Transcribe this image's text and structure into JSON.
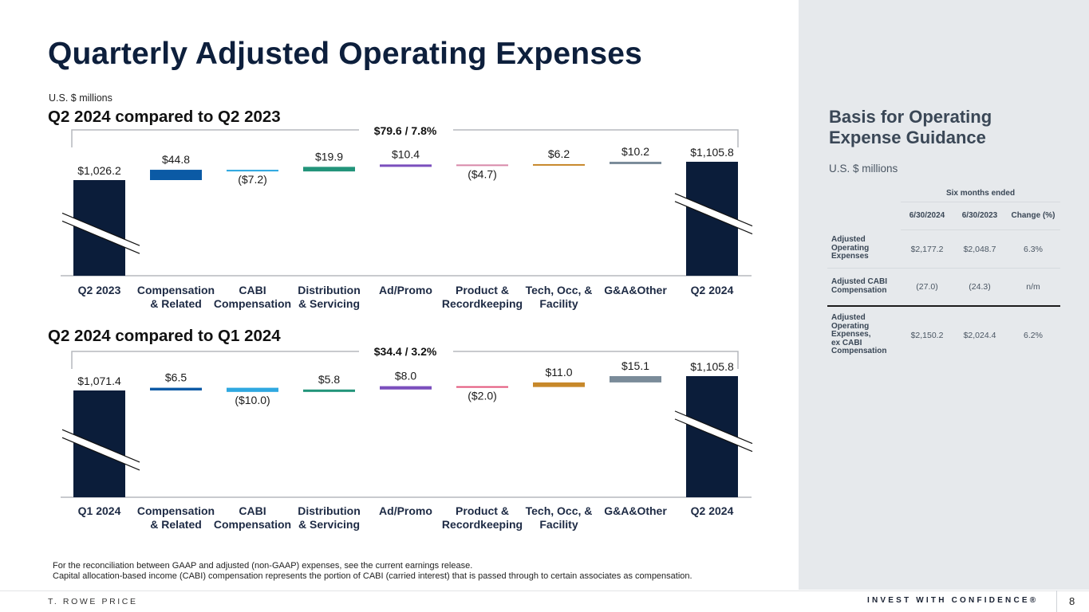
{
  "page": {
    "title": "Quarterly Adjusted Operating Expenses",
    "units": "U.S. $ millions",
    "page_number": "8",
    "brand": "T. ROWE PRICE",
    "tagline": "INVEST WITH CONFIDENCE®",
    "footnotes": [
      "For the reconciliation between GAAP and adjusted (non-GAAP) expenses, see the current earnings release.",
      "Capital allocation-based income (CABI) compensation represents the portion of CABI (carried interest) that is passed through to certain associates as compensation."
    ]
  },
  "chart_data": [
    {
      "type": "bar",
      "subtype": "waterfall",
      "title": "Q2 2024 compared to Q2 2023",
      "total_change_label": "$79.6 / 7.8%",
      "axis_break": true,
      "categories": [
        [
          "Q2 2023"
        ],
        [
          "Compensation",
          "& Related"
        ],
        [
          "CABI",
          "Compensation"
        ],
        [
          "Distribution",
          "& Servicing"
        ],
        [
          "Ad/Promo"
        ],
        [
          "Product &",
          "Recordkeeping"
        ],
        [
          "Tech, Occ, &",
          "Facility"
        ],
        [
          "G&A&Other"
        ],
        [
          "Q2 2024"
        ]
      ],
      "values": [
        1026.2,
        44.8,
        -7.2,
        19.9,
        10.4,
        -4.7,
        6.2,
        10.2,
        1105.8
      ],
      "labels": [
        "$1,026.2",
        "$44.8",
        "($7.2)",
        "$19.9",
        "$10.4",
        "($4.7)",
        "$6.2",
        "$10.2",
        "$1,105.8"
      ],
      "kinds": [
        "total",
        "delta",
        "delta",
        "delta",
        "delta",
        "delta",
        "delta",
        "delta",
        "total"
      ],
      "colors": [
        "#0b1d3a",
        "#0b5aa5",
        "#2fa8e0",
        "#22947a",
        "#7b4fbd",
        "#d787a8",
        "#c7882a",
        "#7a8b99",
        "#0b1d3a"
      ]
    },
    {
      "type": "bar",
      "subtype": "waterfall",
      "title": "Q2 2024 compared to Q1 2024",
      "total_change_label": "$34.4 / 3.2%",
      "axis_break": true,
      "categories": [
        [
          "Q1 2024"
        ],
        [
          "Compensation",
          "& Related"
        ],
        [
          "CABI",
          "Compensation"
        ],
        [
          "Distribution",
          "& Servicing"
        ],
        [
          "Ad/Promo"
        ],
        [
          "Product &",
          "Recordkeeping"
        ],
        [
          "Tech, Occ, &",
          "Facility"
        ],
        [
          "G&A&Other"
        ],
        [
          "Q2 2024"
        ]
      ],
      "values": [
        1071.4,
        6.5,
        -10.0,
        5.8,
        8.0,
        -2.0,
        11.0,
        15.1,
        1105.8
      ],
      "labels": [
        "$1,071.4",
        "$6.5",
        "($10.0)",
        "$5.8",
        "$8.0",
        "($2.0)",
        "$11.0",
        "$15.1",
        "$1,105.8"
      ],
      "kinds": [
        "total",
        "delta",
        "delta",
        "delta",
        "delta",
        "delta",
        "delta",
        "delta",
        "total"
      ],
      "colors": [
        "#0b1d3a",
        "#0b5aa5",
        "#2fa8e0",
        "#22947a",
        "#7b4fbd",
        "#e2557a",
        "#c7882a",
        "#7a8b99",
        "#0b1d3a"
      ]
    }
  ],
  "guidance": {
    "title_lines": [
      "Basis for Operating",
      "Expense Guidance"
    ],
    "units": "U.S. $ millions",
    "group_header": "Six months ended",
    "columns": [
      "6/30/2024",
      "6/30/2023",
      "Change (%)"
    ],
    "rows": [
      {
        "label_lines": [
          "Adjusted",
          "Operating",
          "Expenses"
        ],
        "values": [
          "$2,177.2",
          "$2,048.7",
          "6.3%"
        ]
      },
      {
        "label_lines": [
          "Adjusted CABI",
          "Compensation"
        ],
        "values": [
          "(27.0)",
          "(24.3)",
          "n/m"
        ]
      },
      {
        "label_lines": [
          "Adjusted",
          "Operating",
          "Expenses,",
          "ex CABI",
          "Compensation"
        ],
        "values": [
          "$2,150.2",
          "$2,024.4",
          "6.2%"
        ]
      }
    ]
  }
}
